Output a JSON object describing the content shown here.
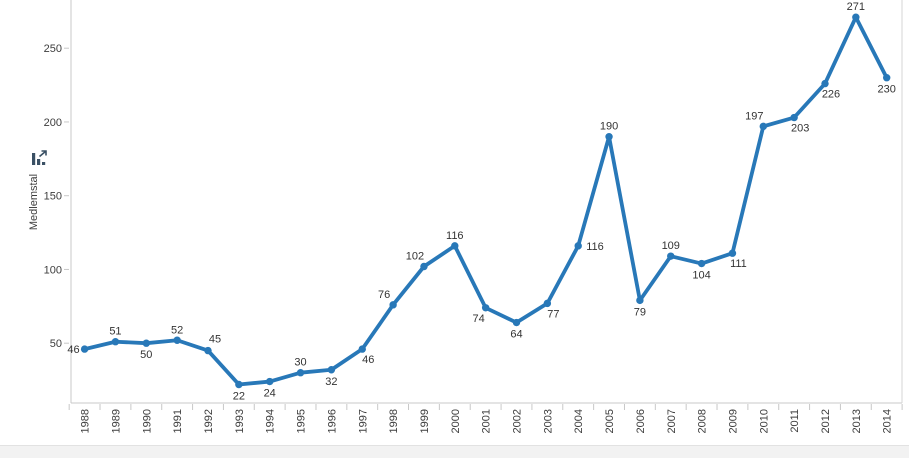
{
  "chart_data": {
    "type": "line",
    "title": "",
    "xlabel": "",
    "ylabel": "Medlemstal",
    "categories": [
      "1988",
      "1989",
      "1990",
      "1991",
      "1992",
      "1993",
      "1994",
      "1995",
      "1996",
      "1997",
      "1998",
      "1999",
      "2000",
      "2001",
      "2002",
      "2003",
      "2004",
      "2005",
      "2006",
      "2007",
      "2008",
      "2009",
      "2010",
      "2011",
      "2012",
      "2013",
      "2014"
    ],
    "values": [
      46,
      51,
      50,
      52,
      45,
      22,
      24,
      30,
      32,
      46,
      76,
      102,
      116,
      74,
      64,
      77,
      116,
      190,
      79,
      109,
      104,
      111,
      197,
      203,
      226,
      271,
      230
    ],
    "label_positions": [
      "left",
      "above",
      "below",
      "above",
      "above-right",
      "below",
      "below",
      "above",
      "below",
      "below-right",
      "above-left",
      "above-left",
      "above",
      "below-left",
      "below",
      "below-right",
      "right",
      "above",
      "below",
      "above",
      "below",
      "below-right",
      "above-left",
      "below-right",
      "below-right",
      "above",
      "below"
    ],
    "y_ticks": [
      50,
      100,
      150,
      200,
      250
    ],
    "ylim": [
      9,
      282
    ],
    "grid": "off",
    "legend": "none",
    "marker": "circle",
    "data_labels": "on",
    "colors": {
      "line": "#2878b8",
      "marker": "#2878b8",
      "data_label": "#333333",
      "axis": "#c8c8c8",
      "right_border": "#d6d6d6",
      "tick_label": "#3d3d3d",
      "axis_title": "#3d3d3d"
    }
  },
  "icons": {
    "toolbar_icon": "bar-chart-arrow-icon",
    "toolbar_icon_color": "#3a5064"
  },
  "footer": {
    "background": "#f2f2f2"
  }
}
